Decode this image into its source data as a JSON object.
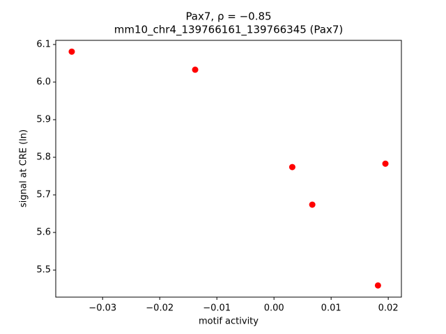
{
  "chart_data": {
    "type": "scatter",
    "title": "Pax7, ρ = −0.85",
    "subtitle": "mm10_chr4_139766161_139766345 (Pax7)",
    "x_label": "motif activity",
    "y_label": "signal at CRE (ln)",
    "color": "#ff0000",
    "x": [
      -0.0354,
      -0.0138,
      0.0032,
      0.0067,
      0.0195,
      0.0182
    ],
    "y": [
      6.081,
      6.033,
      5.774,
      5.674,
      5.783,
      5.459
    ],
    "xlim": [
      -0.0382,
      0.0223
    ],
    "ylim": [
      5.428,
      6.111
    ],
    "xticks": [
      {
        "value": -0.03,
        "label": "−0.03"
      },
      {
        "value": -0.02,
        "label": "−0.02"
      },
      {
        "value": -0.01,
        "label": "−0.01"
      },
      {
        "value": 0,
        "label": "0.00"
      },
      0.01,
      0.02
    ],
    "yticks": [
      5.5,
      5.6,
      5.7,
      5.8,
      5.9,
      {
        "value": 6,
        "label": "6.0"
      },
      6.1
    ]
  }
}
